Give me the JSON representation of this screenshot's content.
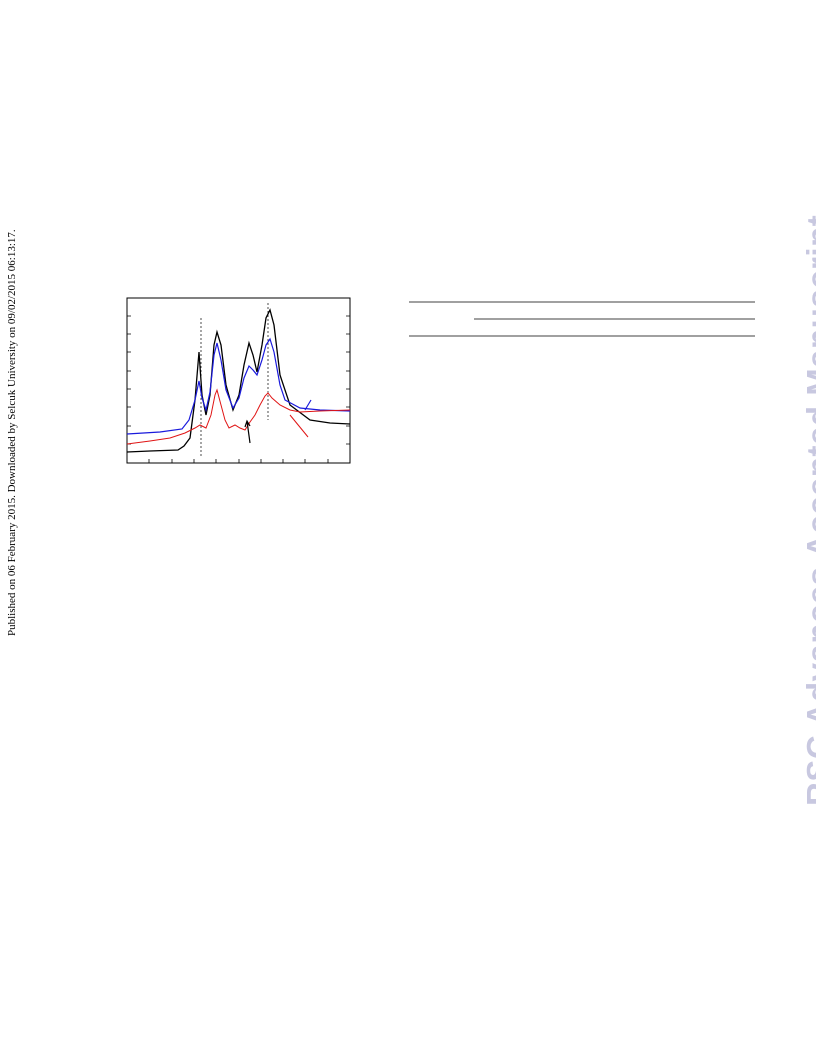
{
  "side_note": "Published on 06 February 2015. Downloaded by Selcuk University on 09/02/2015 06:13:17.",
  "watermark": "RSC Advances Accepted Manuscript"
}
